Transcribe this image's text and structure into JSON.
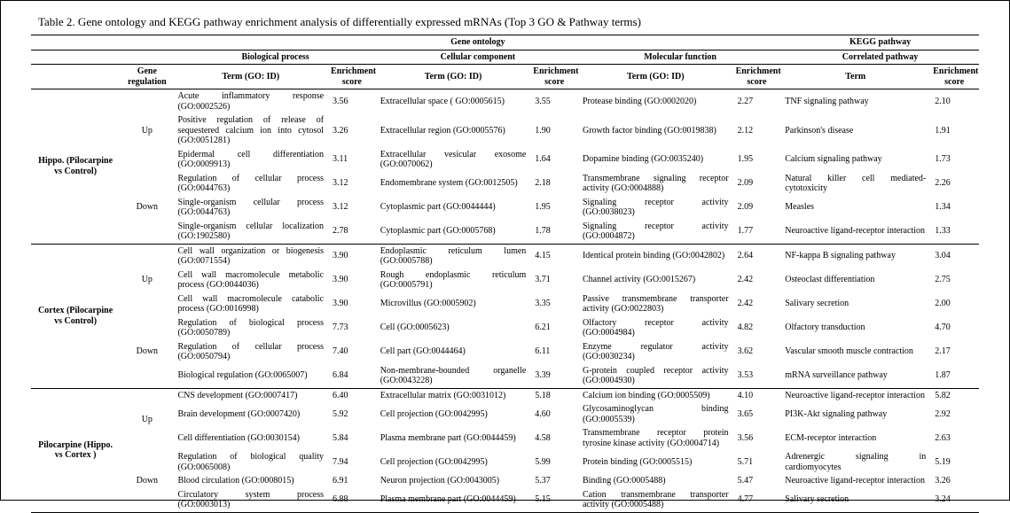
{
  "title": "Table 2. Gene ontology and KEGG pathway enrichment analysis of differentially expressed mRNAs (Top 3 GO & Pathway terms)",
  "headers": {
    "go": "Gene ontology",
    "kegg": "KEGG pathway",
    "bp": "Biological process",
    "cc": "Cellular component",
    "mf": "Molecular function",
    "cp": "Correlated pathway",
    "gene_reg": "Gene regulation",
    "term": "Term (GO: ID)",
    "score": "Enrichment score",
    "kterm": "Term"
  },
  "groups": [
    {
      "label": "Hippo. (Pilocarpine vs Control)",
      "blocks": [
        {
          "reg": "Up",
          "rows": [
            {
              "bp": "Acute inflammatory response (GO:0002526)",
              "bps": "3.56",
              "cc": "Extracellular space ( GO:0005615)",
              "ccs": "3.55",
              "mf": "Protease binding (GO:0002020)",
              "mfs": "2.27",
              "k": "TNF signaling pathway",
              "ks": "2.10"
            },
            {
              "bp": "Positive regulation of release of sequestered calcium ion into cytosol (GO:0051281)",
              "bps": "3.26",
              "cc": "Extracellular region (GO:0005576)",
              "ccs": "1.90",
              "mf": "Growth factor binding (GO:0019838)",
              "mfs": "2.12",
              "k": "Parkinson's disease",
              "ks": "1.91"
            },
            {
              "bp": "Epidermal cell differentiation (GO:0009913)",
              "bps": "3.11",
              "cc": "Extracellular vesicular exosome (GO:0070062)",
              "ccs": "1.64",
              "mf": "Dopamine binding (GO:0035240)",
              "mfs": "1.95",
              "k": "Calcium signaling pathway",
              "ks": "1.73"
            }
          ]
        },
        {
          "reg": "Down",
          "rows": [
            {
              "bp": "Regulation of cellular process (GO:0044763)",
              "bps": "3.12",
              "cc": "Endomembrane system (GO:0012505)",
              "ccs": "2.18",
              "mf": "Transmembrane signaling receptor activity (GO:0004888)",
              "mfs": "2.09",
              "k": "Natural killer cell mediated-cytotoxicity",
              "ks": "2.26"
            },
            {
              "bp": "Single-organism cellular process (GO:0044763)",
              "bps": "3.12",
              "cc": "Cytoplasmic part (GO:0044444)",
              "ccs": "1.95",
              "mf": "Signaling receptor activity (GO:0038023)",
              "mfs": "2.09",
              "k": "Measles",
              "ks": "1.34"
            },
            {
              "bp": "Single-organism cellular localization (GO:1902580)",
              "bps": "2.78",
              "cc": "Cytoplasmic part (GO:0005768)",
              "ccs": "1.78",
              "mf": "Signaling receptor activity (GO:0004872)",
              "mfs": "1.77",
              "k": "Neuroactive ligand-receptor interaction",
              "ks": "1.33"
            }
          ]
        }
      ]
    },
    {
      "label": "Cortex (Pilocarpine vs Control)",
      "blocks": [
        {
          "reg": "Up",
          "rows": [
            {
              "bp": "Cell wall organization or biogenesis (GO:0071554)",
              "bps": "3.90",
              "cc": "Endoplasmic reticulum lumen (GO:0005788)",
              "ccs": "4.15",
              "mf": "Identical protein binding (GO:0042802)",
              "mfs": "2.64",
              "k": "NF-kappa B signaling pathway",
              "ks": "3.04"
            },
            {
              "bp": "Cell wall macromolecule metabolic process (GO:0044036)",
              "bps": "3.90",
              "cc": "Rough endoplasmic reticulum (GO:0005791)",
              "ccs": "3.71",
              "mf": "Channel activity (GO:0015267)",
              "mfs": "2.42",
              "k": "Osteoclast differentiation",
              "ks": "2.75"
            },
            {
              "bp": "Cell wall macromolecule catabolic process (GO:0016998)",
              "bps": "3.90",
              "cc": "Microvillus (GO:0005902)",
              "ccs": "3.35",
              "mf": "Passive transmembrane transporter activity (GO:0022803)",
              "mfs": "2.42",
              "k": "Salivary secretion",
              "ks": "2.00"
            }
          ]
        },
        {
          "reg": "Down",
          "rows": [
            {
              "bp": "Regulation of biological process (GO:0050789)",
              "bps": "7.73",
              "cc": "Cell (GO:0005623)",
              "ccs": "6.21",
              "mf": "Olfactory receptor activity (GO:0004984)",
              "mfs": "4.82",
              "k": "Olfactory transduction",
              "ks": "4.70"
            },
            {
              "bp": "Regulation of cellular process (GO:0050794)",
              "bps": "7.40",
              "cc": "Cell part (GO:0044464)",
              "ccs": "6.11",
              "mf": "Enzyme regulator activity (GO:0030234)",
              "mfs": "3.62",
              "k": "Vascular smooth muscle contraction",
              "ks": "2.17"
            },
            {
              "bp": "Biological regulation (GO:0065007)",
              "bps": "6.84",
              "cc": "Non-membrane-bounded organelle (GO:0043228)",
              "ccs": "3.39",
              "mf": "G-protein coupled receptor activity (GO:0004930)",
              "mfs": "3.53",
              "k": "mRNA surveillance pathway",
              "ks": "1.87"
            }
          ]
        }
      ]
    },
    {
      "label": "Pilocarpine (Hippo. vs Cortex )",
      "blocks": [
        {
          "reg": "Up",
          "rows": [
            {
              "bp": "CNS development (GO:0007417)",
              "bps": "6.40",
              "cc": "Extracellular matrix (GO:0031012)",
              "ccs": "5.18",
              "mf": "Calcium ion binding (GO:0005509)",
              "mfs": "4.10",
              "k": "Neuroactive ligand-receptor interaction",
              "ks": "5.82"
            },
            {
              "bp": "Brain development (GO:0007420)",
              "bps": "5.92",
              "cc": "Cell projection (GO:0042995)",
              "ccs": "4.60",
              "mf": "Glycosaminoglycan binding (GO:0005539)",
              "mfs": "3.65",
              "k": "PI3K-Akt signaling pathway",
              "ks": "2.92"
            },
            {
              "bp": "Cell differentiation (GO:0030154)",
              "bps": "5.84",
              "cc": "Plasma membrane part (GO:0044459)",
              "ccs": "4.58",
              "mf": "Transmembrane receptor protein tyrosine kinase activity (GO:0004714)",
              "mfs": "3.56",
              "k": "ECM-receptor interaction",
              "ks": "2.63"
            }
          ]
        },
        {
          "reg": "Down",
          "rows": [
            {
              "bp": "Regulation of biological quality (GO:0065008)",
              "bps": "7.94",
              "cc": "Cell projection (GO:0042995)",
              "ccs": "5.99",
              "mf": "Protein binding (GO:0005515)",
              "mfs": "5.71",
              "k": "Adrenergic signaling in cardiomyocytes",
              "ks": "5.19"
            },
            {
              "bp": "Blood circulation (GO:0008015)",
              "bps": "6.91",
              "cc": "Neuron projection (GO:0043005)",
              "ccs": "5.37",
              "mf": "Binding (GO:0005488)",
              "mfs": "5.47",
              "k": "Neuroactive ligand-receptor interaction",
              "ks": "3.26"
            },
            {
              "bp": "Circulatory system process (GO:0003013)",
              "bps": "6.88",
              "cc": "Plasma membrane part (GO:0044459)",
              "ccs": "5.15",
              "mf": "Cation transmembrane transporter activity (GO:0005488)",
              "mfs": "4.77",
              "k": "Salivary secretion",
              "ks": "3.24"
            }
          ]
        }
      ]
    }
  ]
}
